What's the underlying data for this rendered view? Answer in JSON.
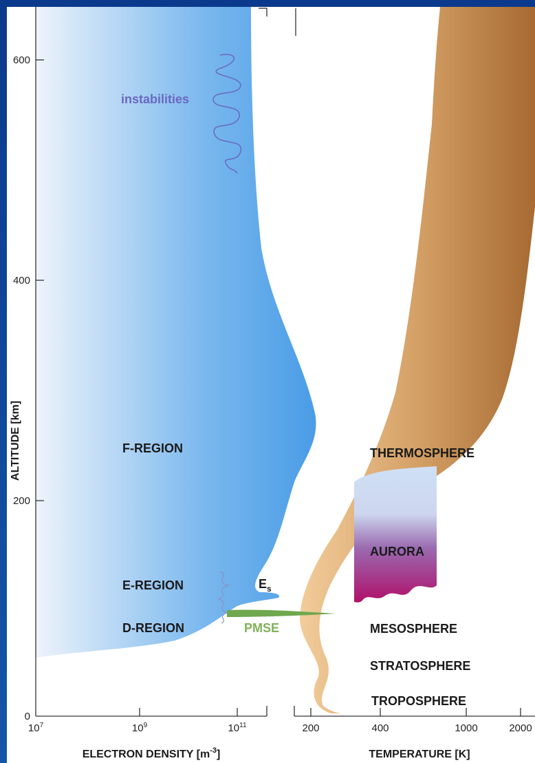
{
  "left_panel": {
    "regions": [
      "F-REGION",
      "E-REGION",
      "D-REGION"
    ],
    "instabilities": "instabilities",
    "es": {
      "base": "E",
      "sub": "s"
    },
    "pmse": "PMSE",
    "y_axis_label": "ALTITUDE [km]",
    "y_ticks": [
      "600",
      "400",
      "200",
      "0"
    ],
    "x_ticks": [
      {
        "base": "10",
        "exp": "7"
      },
      {
        "base": "10",
        "exp": "9"
      },
      {
        "base": "10",
        "exp": "11"
      }
    ],
    "x_axis_label": {
      "text": "ELECTRON DENSITY [m",
      "exp": "-3",
      "end": "]"
    }
  },
  "right_panel": {
    "layers": [
      "THERMOSPHERE",
      "AURORA",
      "MESOSPHERE",
      "STRATOSPHERE",
      "TROPOSPHERE"
    ],
    "x_ticks": [
      "200",
      "400",
      "1000",
      "2000"
    ],
    "x_axis_label": "TEMPERATURE [K]"
  }
}
